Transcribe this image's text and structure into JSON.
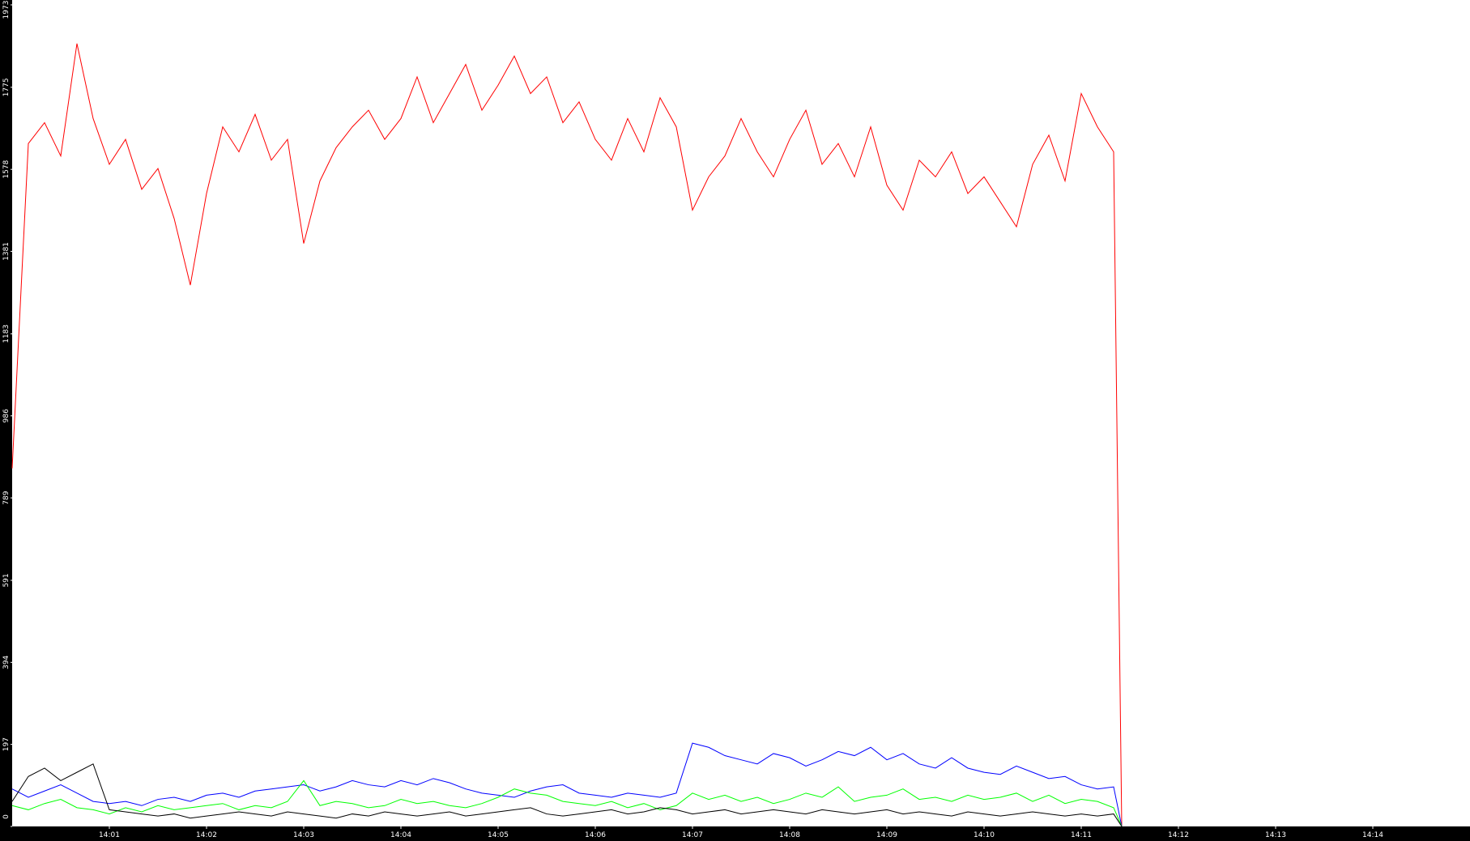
{
  "chart_data": {
    "type": "line",
    "x": [
      "14:00:00",
      "14:00:10",
      "14:00:20",
      "14:00:30",
      "14:00:40",
      "14:00:50",
      "14:01:00",
      "14:01:10",
      "14:01:20",
      "14:01:30",
      "14:01:40",
      "14:01:50",
      "14:02:00",
      "14:02:10",
      "14:02:20",
      "14:02:30",
      "14:02:40",
      "14:02:50",
      "14:03:00",
      "14:03:10",
      "14:03:20",
      "14:03:30",
      "14:03:40",
      "14:03:50",
      "14:04:00",
      "14:04:10",
      "14:04:20",
      "14:04:30",
      "14:04:40",
      "14:04:50",
      "14:05:00",
      "14:05:10",
      "14:05:20",
      "14:05:30",
      "14:05:40",
      "14:05:50",
      "14:06:00",
      "14:06:10",
      "14:06:20",
      "14:06:30",
      "14:06:40",
      "14:06:50",
      "14:07:00",
      "14:07:10",
      "14:07:20",
      "14:07:30",
      "14:07:40",
      "14:07:50",
      "14:08:00",
      "14:08:10",
      "14:08:20",
      "14:08:30",
      "14:08:40",
      "14:08:50",
      "14:09:00",
      "14:09:10",
      "14:09:20",
      "14:09:30",
      "14:09:40",
      "14:09:50",
      "14:10:00",
      "14:10:10",
      "14:10:20",
      "14:10:30",
      "14:10:40",
      "14:10:50",
      "14:11:00",
      "14:11:10",
      "14:11:20",
      "14:11:25"
    ],
    "series": [
      {
        "color": "#ff0000",
        "values": [
          860,
          1640,
          1690,
          1610,
          1880,
          1700,
          1590,
          1650,
          1530,
          1580,
          1460,
          1300,
          1520,
          1680,
          1620,
          1710,
          1600,
          1650,
          1400,
          1550,
          1630,
          1680,
          1720,
          1650,
          1700,
          1800,
          1690,
          1760,
          1830,
          1720,
          1780,
          1850,
          1760,
          1800,
          1690,
          1740,
          1650,
          1600,
          1700,
          1620,
          1750,
          1680,
          1480,
          1560,
          1610,
          1700,
          1620,
          1560,
          1650,
          1720,
          1590,
          1640,
          1560,
          1680,
          1540,
          1480,
          1600,
          1560,
          1620,
          1520,
          1560,
          1500,
          1440,
          1590,
          1660,
          1550,
          1760,
          1680,
          1620,
          0
        ]
      },
      {
        "color": "#0000ff",
        "values": [
          90,
          70,
          85,
          100,
          80,
          60,
          55,
          60,
          50,
          65,
          70,
          60,
          75,
          80,
          70,
          85,
          90,
          95,
          100,
          85,
          95,
          110,
          100,
          95,
          110,
          100,
          115,
          105,
          90,
          80,
          75,
          70,
          85,
          95,
          100,
          80,
          75,
          70,
          80,
          75,
          70,
          80,
          200,
          190,
          170,
          160,
          150,
          175,
          165,
          145,
          160,
          180,
          170,
          190,
          160,
          175,
          150,
          140,
          165,
          140,
          130,
          125,
          145,
          130,
          115,
          120,
          100,
          90,
          95,
          0
        ]
      },
      {
        "color": "#00ff00",
        "values": [
          50,
          40,
          55,
          65,
          45,
          40,
          30,
          45,
          35,
          50,
          40,
          45,
          50,
          55,
          40,
          50,
          45,
          60,
          110,
          50,
          60,
          55,
          45,
          50,
          65,
          55,
          60,
          50,
          45,
          55,
          70,
          90,
          80,
          75,
          60,
          55,
          50,
          60,
          45,
          55,
          40,
          50,
          80,
          65,
          75,
          60,
          70,
          55,
          65,
          80,
          70,
          95,
          60,
          70,
          75,
          90,
          65,
          70,
          60,
          75,
          65,
          70,
          80,
          60,
          75,
          55,
          65,
          60,
          45,
          0
        ]
      },
      {
        "color": "#000000",
        "values": [
          60,
          120,
          140,
          110,
          130,
          150,
          40,
          35,
          30,
          25,
          30,
          20,
          25,
          30,
          35,
          30,
          25,
          35,
          30,
          25,
          20,
          30,
          25,
          35,
          30,
          25,
          30,
          35,
          25,
          30,
          35,
          40,
          45,
          30,
          25,
          30,
          35,
          40,
          30,
          35,
          45,
          40,
          30,
          35,
          40,
          30,
          35,
          40,
          35,
          30,
          40,
          35,
          30,
          35,
          40,
          30,
          35,
          30,
          25,
          35,
          30,
          25,
          30,
          35,
          30,
          25,
          30,
          25,
          30,
          0
        ]
      }
    ],
    "xlim": [
      "14:00",
      "14:15"
    ],
    "xticks": [
      "14:01",
      "14:02",
      "14:03",
      "14:04",
      "14:05",
      "14:06",
      "14:07",
      "14:08",
      "14:09",
      "14:10",
      "14:11",
      "14:12",
      "14:13",
      "14:14"
    ],
    "ylim": [
      0,
      1973
    ],
    "yticks": [
      0,
      197,
      394,
      591,
      789,
      986,
      1183,
      1381,
      1578,
      1775,
      1973
    ]
  }
}
